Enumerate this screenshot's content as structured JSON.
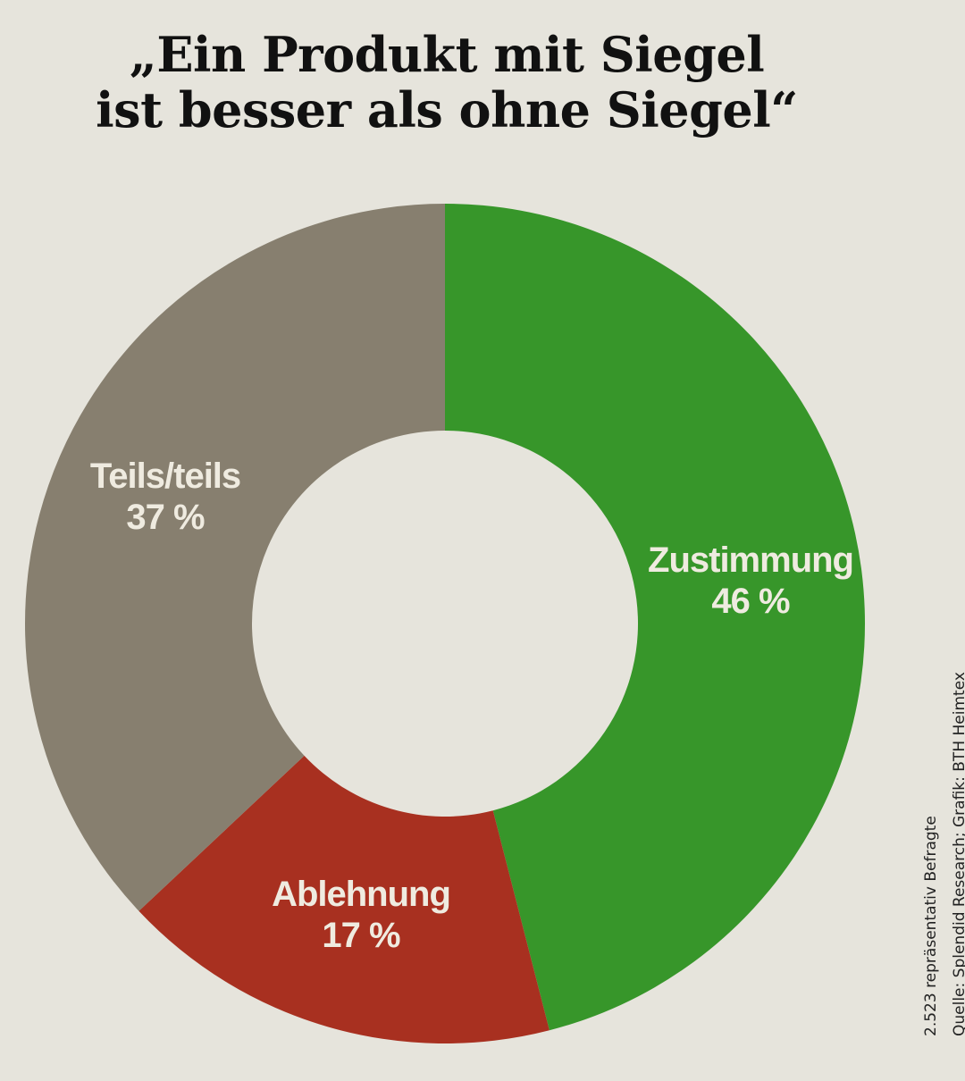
{
  "title": {
    "line1": "„Ein Produkt mit Siegel",
    "line2": "ist besser als ohne Siegel“"
  },
  "chart_data": {
    "type": "pie",
    "variant": "donut",
    "start": "top",
    "direction": "clockwise",
    "categories": [
      "Zustimmung",
      "Ablehnung",
      "Teils/teils"
    ],
    "values": [
      46,
      17,
      37
    ],
    "value_labels": [
      "46 %",
      "17 %",
      "37 %"
    ],
    "colors": [
      "#37962a",
      "#a83020",
      "#877f6f"
    ],
    "legend": "none"
  },
  "notes": {
    "sample": "2.523 repräsentativ Befragte",
    "source": "Quelle: Splendid Research; Grafik: BTH Heimtex"
  }
}
